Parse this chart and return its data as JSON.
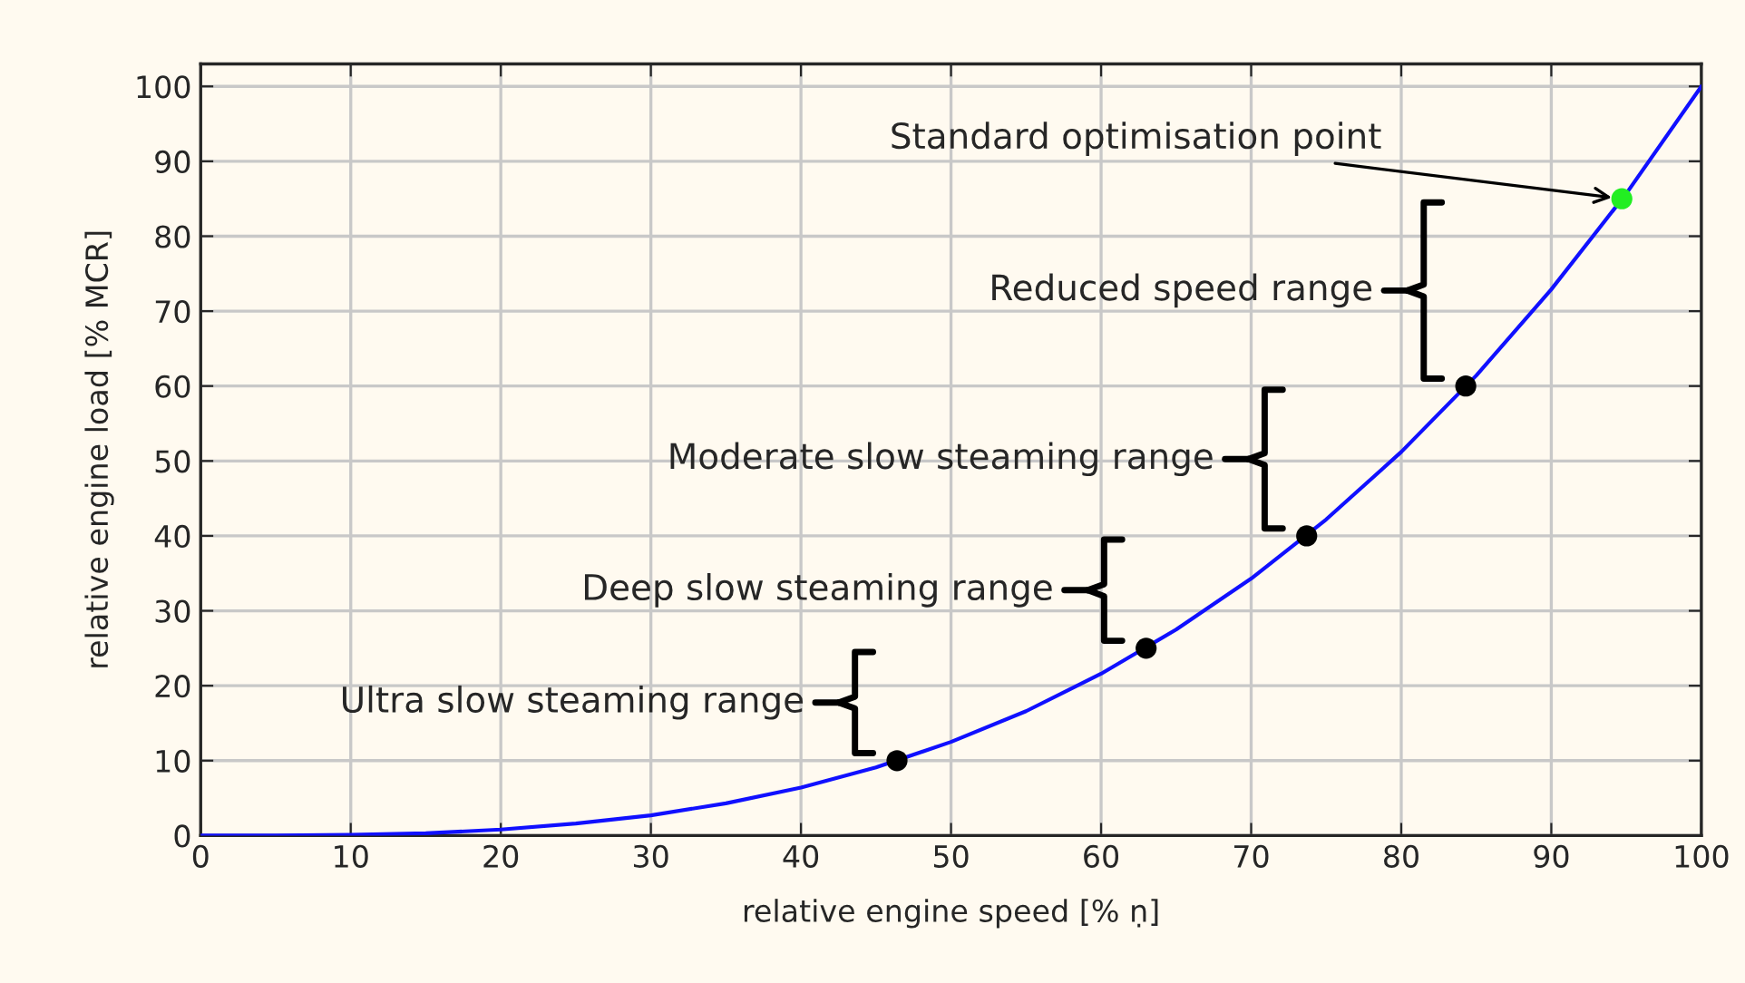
{
  "chart_data": {
    "type": "line",
    "xlabel": "relative engine speed [% ṇ]",
    "ylabel": "relative engine load [% MCR]",
    "x": [
      0,
      5,
      10,
      15,
      20,
      25,
      30,
      35,
      40,
      45,
      50,
      55,
      60,
      65,
      70,
      75,
      80,
      85,
      90,
      95,
      100
    ],
    "series": [
      {
        "color": "#1010ff",
        "values": [
          0,
          0,
          0.1,
          0.3,
          0.8,
          1.6,
          2.7,
          4.3,
          6.4,
          9.1,
          12.5,
          16.6,
          21.6,
          27.5,
          34.3,
          42.2,
          51.2,
          61.4,
          72.9,
          85.7,
          100
        ],
        "marker": "none"
      },
      {
        "type": "scatter",
        "color": "#000000",
        "x": [
          46.4,
          63,
          73.7,
          84.3
        ],
        "values": [
          10,
          25,
          40,
          60
        ],
        "marker": "circle"
      },
      {
        "type": "scatter",
        "color": "#22ee22",
        "x": [
          94.7
        ],
        "values": [
          85
        ],
        "marker": "circle"
      }
    ],
    "annotations": [
      "Ultra slow steaming range",
      "Deep slow steaming range",
      "Moderate slow steaming range",
      "Reduced speed range",
      {
        "text": "Standard optimisation point",
        "x": 94.7,
        "y": 85
      }
    ],
    "xlim": [
      0,
      100
    ],
    "ylim": [
      0,
      103
    ],
    "xticks": [
      0,
      10,
      20,
      30,
      40,
      50,
      60,
      70,
      80,
      90,
      100
    ],
    "yticks": [
      0,
      10,
      20,
      30,
      40,
      50,
      60,
      70,
      80,
      90,
      100
    ],
    "grid": true
  }
}
